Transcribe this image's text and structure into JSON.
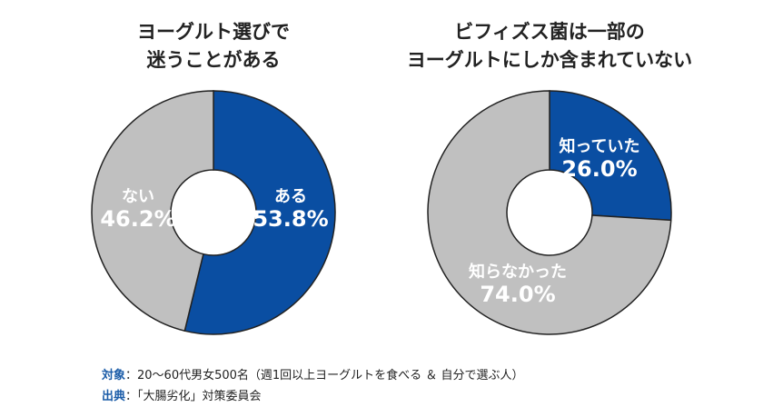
{
  "colors": {
    "blue": "#0a4ea2",
    "gray": "#c0c0c0",
    "outline": "#222222",
    "note_label": "#1b5ca8"
  },
  "chart_data": [
    {
      "type": "pie",
      "donut": true,
      "title": [
        "ヨーグルト選びで",
        "迷うことがある"
      ],
      "slices": [
        {
          "label": "ある",
          "value": 53.8,
          "display": "53.8%",
          "color": "#0a4ea2"
        },
        {
          "label": "ない",
          "value": 46.2,
          "display": "46.2%",
          "color": "#c0c0c0"
        }
      ]
    },
    {
      "type": "pie",
      "donut": true,
      "title": [
        "ビフィズス菌は一部の",
        "ヨーグルトにしか含まれていない"
      ],
      "slices": [
        {
          "label": "知っていた",
          "value": 26.0,
          "display": "26.0%",
          "color": "#0a4ea2"
        },
        {
          "label": "知らなかった",
          "value": 74.0,
          "display": "74.0%",
          "color": "#c0c0c0"
        }
      ]
    }
  ],
  "notes": {
    "subject_label": "対象",
    "subject_text": "：20〜60代男女500名（週1回以上ヨーグルトを食べる ＆ 自分で選ぶ人）",
    "source_label": "出典",
    "source_text": "：「大腸劣化」対策委員会"
  }
}
